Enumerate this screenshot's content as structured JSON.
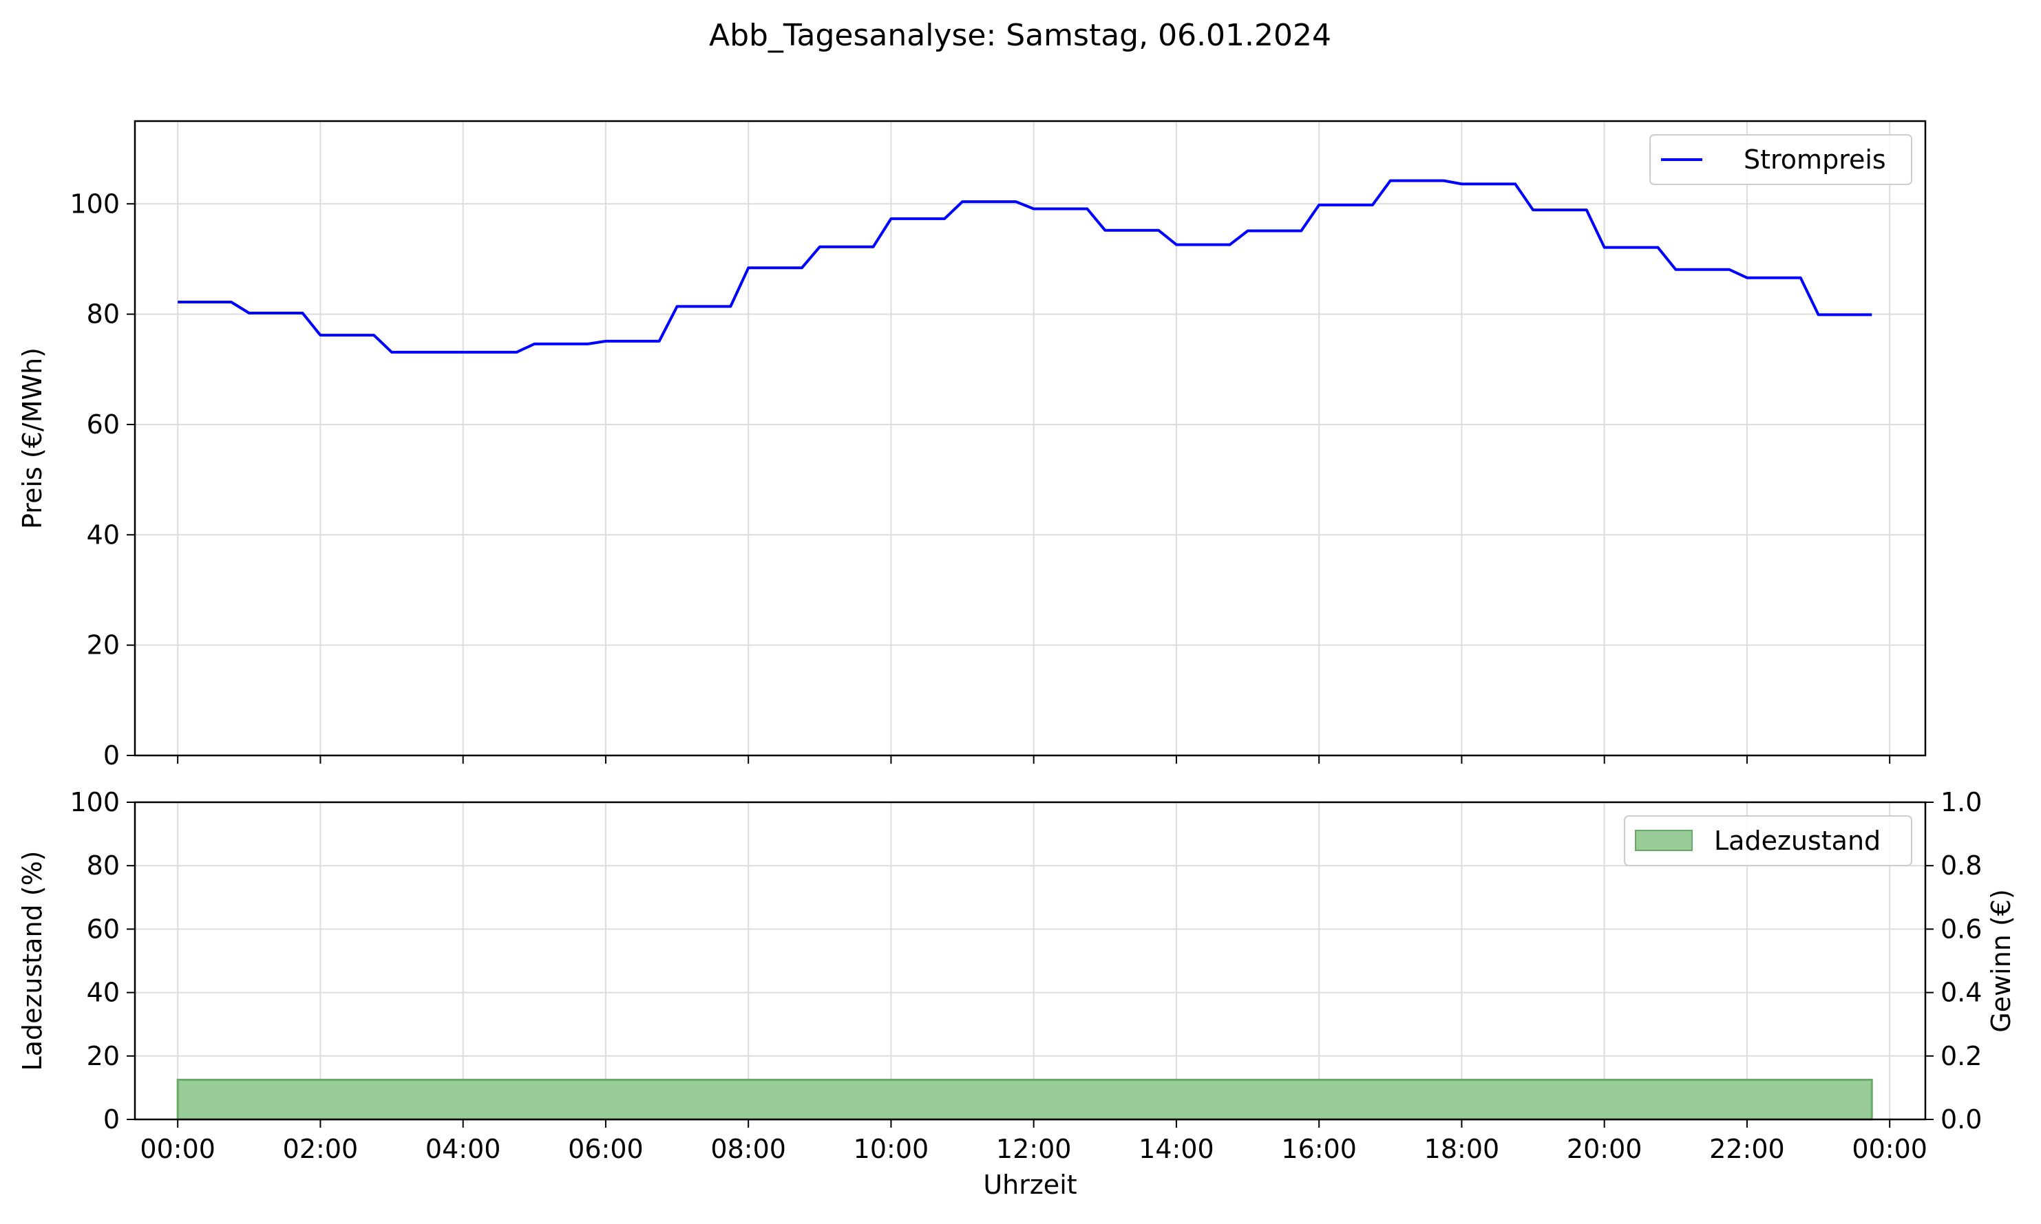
{
  "chart_data": [
    {
      "type": "line",
      "suptitle": "Abb_Tagesanalyse: Samstag, 06.01.2024",
      "xlabel": "",
      "ylabel": "Preis (€/MWh)",
      "ylim": [
        0,
        115
      ],
      "yticks": [
        0,
        20,
        40,
        60,
        80,
        100
      ],
      "xlim_hours": [
        -0.6,
        24.5
      ],
      "grid": true,
      "legend_position": "top-right",
      "series": [
        {
          "name": "Strompreis",
          "color": "#0000ff",
          "x_hours": [
            0,
            0.25,
            0.5,
            0.75,
            1,
            1.25,
            1.5,
            1.75,
            2,
            2.25,
            2.5,
            2.75,
            3,
            3.25,
            3.5,
            3.75,
            4,
            4.25,
            4.5,
            4.75,
            5,
            5.25,
            5.5,
            5.75,
            6,
            6.25,
            6.5,
            6.75,
            7,
            7.25,
            7.5,
            7.75,
            8,
            8.25,
            8.5,
            8.75,
            9,
            9.25,
            9.5,
            9.75,
            10,
            10.25,
            10.5,
            10.75,
            11,
            11.25,
            11.5,
            11.75,
            12,
            12.25,
            12.5,
            12.75,
            13,
            13.25,
            13.5,
            13.75,
            14,
            14.25,
            14.5,
            14.75,
            15,
            15.25,
            15.5,
            15.75,
            16,
            16.25,
            16.5,
            16.75,
            17,
            17.25,
            17.5,
            17.75,
            18,
            18.25,
            18.5,
            18.75,
            19,
            19.25,
            19.5,
            19.75,
            20,
            20.25,
            20.5,
            20.75,
            21,
            21.25,
            21.5,
            21.75,
            22,
            22.25,
            22.5,
            22.75,
            23,
            23.25,
            23.5,
            23.75
          ],
          "values": [
            82.2,
            82.2,
            82.2,
            82.2,
            80.2,
            80.2,
            80.2,
            80.2,
            76.2,
            76.2,
            76.2,
            76.2,
            73.1,
            73.1,
            73.1,
            73.1,
            73.1,
            73.1,
            73.1,
            73.1,
            74.6,
            74.6,
            74.6,
            74.6,
            75.1,
            75.1,
            75.1,
            75.1,
            81.4,
            81.4,
            81.4,
            81.4,
            88.4,
            88.4,
            88.4,
            88.4,
            92.2,
            92.2,
            92.2,
            92.2,
            97.3,
            97.3,
            97.3,
            97.3,
            100.4,
            100.4,
            100.4,
            100.4,
            99.1,
            99.1,
            99.1,
            99.1,
            95.2,
            95.2,
            95.2,
            95.2,
            92.6,
            92.6,
            92.6,
            92.6,
            95.1,
            95.1,
            95.1,
            95.1,
            99.8,
            99.8,
            99.8,
            99.8,
            104.2,
            104.2,
            104.2,
            104.2,
            103.6,
            103.6,
            103.6,
            103.6,
            98.9,
            98.9,
            98.9,
            98.9,
            92.1,
            92.1,
            92.1,
            92.1,
            88.1,
            88.1,
            88.1,
            88.1,
            86.6,
            86.6,
            86.6,
            86.6,
            79.9,
            79.9,
            79.9,
            79.9
          ]
        }
      ]
    },
    {
      "type": "area",
      "xlabel": "Uhrzeit",
      "ylabel": "Ladezustand (%)",
      "ylabel_color": "#008000",
      "ylim": [
        0,
        100
      ],
      "yticks": [
        0,
        20,
        40,
        60,
        80,
        100
      ],
      "y2label": "Gewinn (€)",
      "y2label_color": "#0000ff",
      "y2lim": [
        0,
        1
      ],
      "y2ticks": [
        "0.0",
        "0.2",
        "0.4",
        "0.6",
        "0.8",
        "1.0"
      ],
      "xlim_hours": [
        -0.6,
        24.5
      ],
      "xtick_hours": [
        0,
        2,
        4,
        6,
        8,
        10,
        12,
        14,
        16,
        18,
        20,
        22,
        24
      ],
      "xtick_labels": [
        "00:00",
        "02:00",
        "04:00",
        "06:00",
        "08:00",
        "10:00",
        "12:00",
        "14:00",
        "16:00",
        "18:00",
        "20:00",
        "22:00",
        "00:00"
      ],
      "grid": true,
      "legend_position": "top-right",
      "series": [
        {
          "name": "Ladezustand",
          "color": "#99cc99",
          "edge_color": "#66aa66",
          "x_hours": [
            0,
            23.75
          ],
          "values": [
            12.5,
            12.5
          ]
        }
      ]
    }
  ]
}
